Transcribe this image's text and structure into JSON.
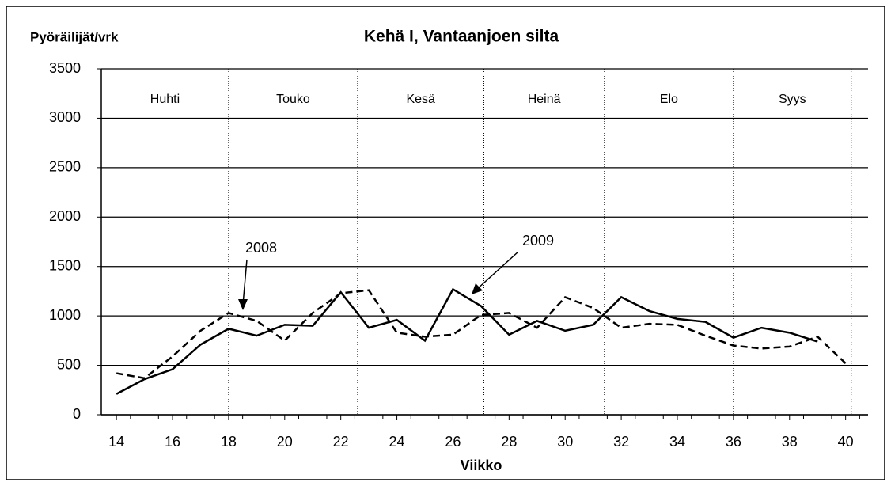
{
  "chart_data": {
    "type": "line",
    "title": "Kehä I, Vantaanjoen  silta",
    "y_label": "Pyöräilijät/vrk",
    "x_label": "Viikko",
    "x": [
      14,
      15,
      16,
      17,
      18,
      19,
      20,
      21,
      22,
      23,
      24,
      25,
      26,
      27,
      28,
      29,
      30,
      31,
      32,
      33,
      34,
      35,
      36,
      37,
      38,
      39,
      40
    ],
    "series": [
      {
        "name": "2008",
        "color": "#000000",
        "dash": true,
        "values": [
          420,
          370,
          590,
          850,
          1030,
          950,
          750,
          1030,
          1230,
          1260,
          830,
          790,
          810,
          1010,
          1030,
          880,
          1190,
          1080,
          880,
          920,
          910,
          800,
          700,
          670,
          690,
          790,
          520
        ]
      },
      {
        "name": "2009",
        "color": "#000000",
        "dash": false,
        "values": [
          210,
          360,
          460,
          710,
          870,
          800,
          910,
          900,
          1240,
          880,
          960,
          750,
          1270,
          1100,
          810,
          950,
          850,
          910,
          1190,
          1050,
          970,
          940,
          780,
          880,
          830,
          740,
          null
        ]
      }
    ],
    "months": [
      "Huhti",
      "Touko",
      "Kesä",
      "Heinä",
      "Elo",
      "Syys"
    ],
    "month_dividers": [
      18,
      22.6,
      27.1,
      31.4,
      36,
      40.2
    ],
    "xlim": [
      13.46,
      40.8
    ],
    "xticks": [
      14,
      16,
      18,
      20,
      22,
      24,
      26,
      28,
      30,
      32,
      34,
      36,
      38,
      40
    ],
    "ylim": [
      0,
      3500
    ],
    "yticks": [
      0,
      500,
      1000,
      1500,
      2000,
      2500,
      3000,
      3500
    ],
    "grid": true
  }
}
